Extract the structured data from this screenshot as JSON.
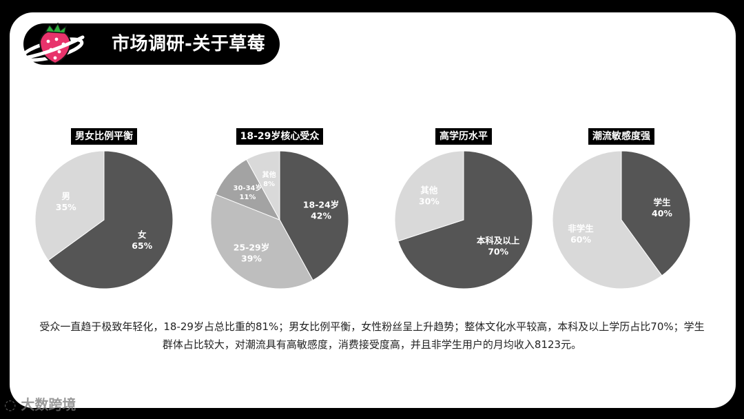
{
  "slide": {
    "title": "市场调研-关于草莓",
    "description_line1": "受众一直趋于极致年轻化，18-29岁占总比重的81%；男女比例平衡，女性粉丝呈上升趋势；整体文化水平较高，本科及以上学历占比70%；学生",
    "description_line2": "群体占比较大，对潮流具有高敏感度，消费接受度高，并且非学生用户的月均收入8123元。",
    "watermark": "大数跨境",
    "logo_icon": "strawberry-planet-icon"
  },
  "colors": {
    "dark": "#555555",
    "medium": "#A3A3A3",
    "light": "#BEBEBE",
    "lighter": "#D9D9D9",
    "label_dark_bg": "#FFFFFF"
  },
  "chart_data": [
    {
      "type": "pie",
      "title": "男女比例平衡",
      "slices": [
        {
          "label": "女",
          "value": 65,
          "pct": "65%",
          "color": "#555555",
          "text_color": "#FFFFFF"
        },
        {
          "label": "男",
          "value": 35,
          "pct": "35%",
          "color": "#D9D9D9",
          "text_color": "#FFFFFF"
        }
      ]
    },
    {
      "type": "pie",
      "title": "18-29岁核心受众",
      "slices": [
        {
          "label": "18-24岁",
          "value": 42,
          "pct": "42%",
          "color": "#555555",
          "text_color": "#FFFFFF"
        },
        {
          "label": "25-29岁",
          "value": 39,
          "pct": "39%",
          "color": "#BEBEBE",
          "text_color": "#FFFFFF"
        },
        {
          "label": "30-34岁",
          "value": 11,
          "pct": "11%",
          "color": "#A3A3A3",
          "text_color": "#FFFFFF"
        },
        {
          "label": "其他",
          "value": 8,
          "pct": "8%",
          "color": "#D9D9D9",
          "text_color": "#FFFFFF"
        }
      ]
    },
    {
      "type": "pie",
      "title": "高学历水平",
      "slices": [
        {
          "label": "本科及以上",
          "value": 70,
          "pct": "70%",
          "color": "#555555",
          "text_color": "#FFFFFF"
        },
        {
          "label": "其他",
          "value": 30,
          "pct": "30%",
          "color": "#D9D9D9",
          "text_color": "#FFFFFF"
        }
      ]
    },
    {
      "type": "pie",
      "title": "潮流敏感度强",
      "slices": [
        {
          "label": "学生",
          "value": 40,
          "pct": "40%",
          "color": "#555555",
          "text_color": "#FFFFFF"
        },
        {
          "label": "非学生",
          "value": 60,
          "pct": "60%",
          "color": "#D9D9D9",
          "text_color": "#FFFFFF"
        }
      ]
    }
  ]
}
